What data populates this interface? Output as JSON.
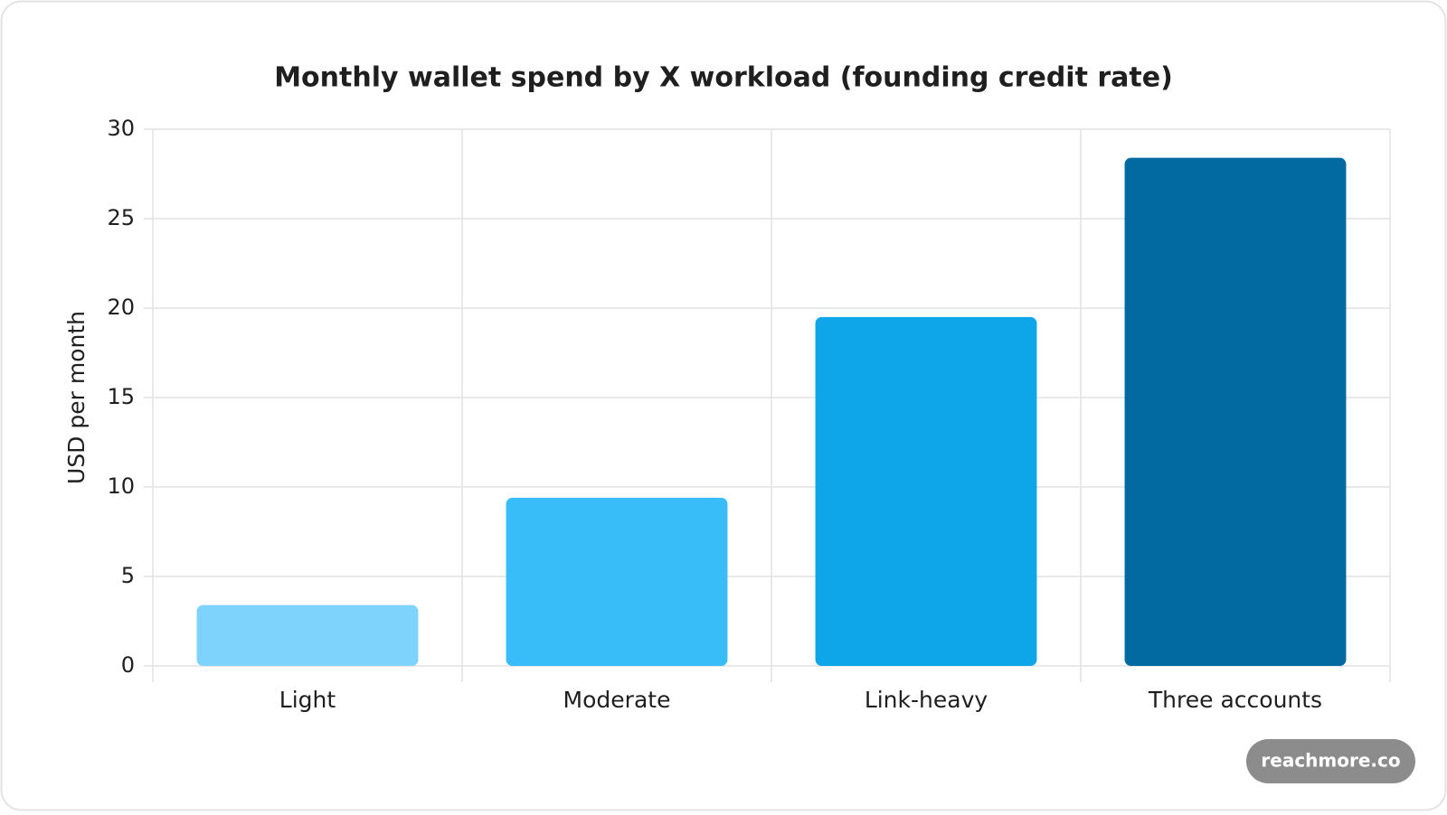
{
  "chart_data": {
    "type": "bar",
    "title": "Monthly wallet spend by X workload (founding credit rate)",
    "y_label": "USD per month",
    "categories": [
      "Light",
      "Moderate",
      "Link-heavy",
      "Three accounts"
    ],
    "values": [
      3.4,
      9.4,
      19.5,
      28.4
    ],
    "colors": [
      "#7dd3fc",
      "#38bdf8",
      "#0ea5e9",
      "#036aa1"
    ],
    "ylim": [
      0,
      30
    ],
    "yticks": [
      0,
      5,
      10,
      15,
      20,
      25,
      30
    ],
    "grid": true
  },
  "watermark": "reachmore.co"
}
